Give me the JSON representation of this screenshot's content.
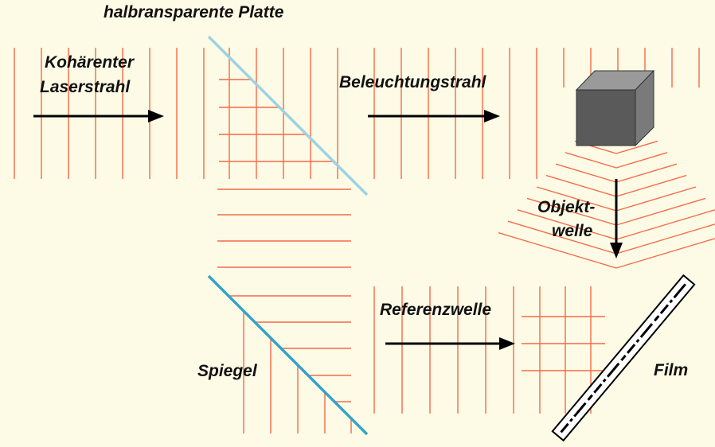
{
  "labels": {
    "plate": "halbransparente Platte",
    "laser_line1": "Kohärenter",
    "laser_line2": "Laserstrahl",
    "illumination": "Beleuchtungstrahl",
    "object_line1": "Objekt-",
    "object_line2": "welle",
    "mirror": "Spiegel",
    "reference": "Referenzwelle",
    "film": "Film"
  },
  "colors": {
    "background": "#fdfbe6",
    "wavefront": "#f46a48",
    "plate": "#9dd3e2",
    "mirror": "#35a3c7",
    "arrow": "#000000",
    "cube_front": "#5a5a5a",
    "cube_top": "#9a9a9a",
    "cube_side": "#7a7a7a",
    "film": "#000000"
  },
  "icons": {
    "object": "cube-icon",
    "arrows": "right-arrow-icon"
  }
}
